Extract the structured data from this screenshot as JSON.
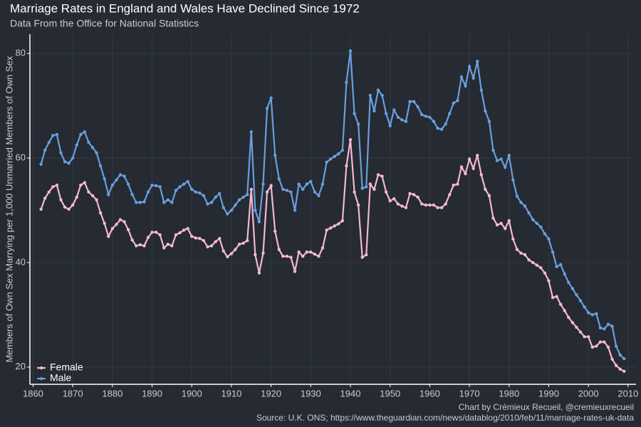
{
  "chart_data": {
    "type": "line",
    "title": "Marriage Rates in England and Wales Have Declined Since 1972",
    "subtitle": "Data From the Office for National Statistics",
    "y_label": "Members of Own Sex Marrying per 1,000 Unmarried Members of Own Sex",
    "caption": [
      "Chart by Crémieux Recueil, @cremieuxrecueil",
      "Source: U.K. ONS; https://www.theguardian.com/news/datablog/2010/feb/11/marriage-rates-uk-data"
    ],
    "x": [
      1862,
      1863,
      1864,
      1865,
      1866,
      1867,
      1868,
      1869,
      1870,
      1871,
      1872,
      1873,
      1874,
      1875,
      1876,
      1877,
      1878,
      1879,
      1880,
      1881,
      1882,
      1883,
      1884,
      1885,
      1886,
      1887,
      1888,
      1889,
      1890,
      1891,
      1892,
      1893,
      1894,
      1895,
      1896,
      1897,
      1898,
      1899,
      1900,
      1901,
      1902,
      1903,
      1904,
      1905,
      1906,
      1907,
      1908,
      1909,
      1910,
      1911,
      1912,
      1913,
      1914,
      1915,
      1916,
      1917,
      1918,
      1919,
      1920,
      1921,
      1922,
      1923,
      1924,
      1925,
      1926,
      1927,
      1928,
      1929,
      1930,
      1931,
      1932,
      1933,
      1934,
      1935,
      1936,
      1937,
      1938,
      1939,
      1940,
      1941,
      1942,
      1943,
      1944,
      1945,
      1946,
      1947,
      1948,
      1949,
      1950,
      1951,
      1952,
      1953,
      1954,
      1955,
      1956,
      1957,
      1958,
      1959,
      1960,
      1961,
      1962,
      1963,
      1964,
      1965,
      1966,
      1967,
      1968,
      1969,
      1970,
      1971,
      1972,
      1973,
      1974,
      1975,
      1976,
      1977,
      1978,
      1979,
      1980,
      1981,
      1982,
      1983,
      1984,
      1985,
      1986,
      1987,
      1988,
      1989,
      1990,
      1991,
      1992,
      1993,
      1994,
      1995,
      1996,
      1997,
      1998,
      1999,
      2000,
      2001,
      2002,
      2003,
      2004,
      2005,
      2006,
      2007,
      2008,
      2009
    ],
    "series": [
      {
        "name": "Female",
        "color": "#f4b8d4",
        "values": [
          50.2,
          52.3,
          53.5,
          54.5,
          54.8,
          52,
          50.6,
          50.2,
          51,
          52.5,
          54.8,
          55.3,
          53.5,
          52.8,
          52,
          49.5,
          47.5,
          45,
          46.5,
          47.3,
          48.2,
          47.8,
          46.3,
          44.3,
          43.2,
          43.4,
          43.2,
          44.8,
          45.8,
          45.8,
          45.3,
          42.8,
          43.5,
          43.2,
          45.3,
          45.7,
          46.2,
          46.5,
          45,
          44.7,
          44.6,
          44.2,
          43,
          43.2,
          44,
          44.6,
          42.2,
          41.1,
          41.7,
          42.5,
          43.5,
          43.7,
          44.2,
          54,
          41.5,
          38,
          41.8,
          53.5,
          54.7,
          46,
          42.5,
          41.2,
          41.2,
          41,
          38.3,
          42,
          41.2,
          42,
          42,
          41.6,
          41.2,
          42.8,
          46.2,
          46.6,
          47,
          47.4,
          48,
          58.5,
          63.5,
          53.5,
          51,
          41,
          41.5,
          55,
          54,
          56.8,
          56.5,
          53.5,
          51.8,
          52.2,
          51.2,
          50.8,
          50.5,
          53.2,
          53,
          52.5,
          51.2,
          51,
          51,
          51,
          50.5,
          50.5,
          51.2,
          53,
          54.8,
          55,
          58.3,
          57,
          59.8,
          58,
          60.5,
          56.8,
          54,
          52.8,
          48.5,
          47.2,
          47.5,
          46.5,
          48,
          44.5,
          42.5,
          41.8,
          41.5,
          40.5,
          40,
          39.5,
          39,
          38,
          36.5,
          33.3,
          33.5,
          32,
          30.8,
          29.5,
          28.5,
          27.6,
          26.7,
          25.8,
          25.8,
          23.8,
          24,
          24.8,
          24.8,
          23.8,
          21.5,
          20.3,
          19.6,
          19.2
        ]
      },
      {
        "name": "Male",
        "color": "#6a9fdc",
        "values": [
          58.8,
          61.5,
          63,
          64.3,
          64.5,
          61,
          59.3,
          59,
          60,
          62.5,
          64.5,
          65,
          63,
          62,
          61,
          58.5,
          56,
          53,
          54.8,
          55.8,
          56.8,
          56.5,
          55,
          53,
          51.5,
          51.5,
          51.6,
          53.5,
          54.8,
          54.7,
          54.5,
          51.5,
          52,
          51.5,
          53.8,
          54.5,
          55,
          55.5,
          54,
          53.5,
          53.3,
          52.8,
          51.2,
          51.5,
          52.5,
          53.2,
          50.5,
          49.3,
          50,
          51,
          52,
          52.5,
          53,
          65,
          50,
          47.8,
          55,
          69.5,
          71.5,
          60.5,
          56,
          54,
          53.8,
          53.5,
          50,
          55,
          54,
          55,
          55.5,
          53.5,
          52.8,
          55,
          59.2,
          59.8,
          60.3,
          60.8,
          61.5,
          74.5,
          80.5,
          68.5,
          66.5,
          54.2,
          54.5,
          72,
          69,
          73,
          72,
          68.5,
          66.2,
          69.2,
          67.8,
          67.3,
          67,
          70.8,
          70.8,
          69.8,
          68.3,
          68,
          67.8,
          67,
          65.7,
          65.5,
          66.5,
          68.5,
          70.5,
          71,
          75.5,
          73.8,
          77.5,
          75.3,
          78.5,
          73,
          69,
          67,
          61.5,
          59.5,
          59.8,
          58.2,
          60.5,
          55.8,
          52.7,
          51.5,
          50.8,
          49.5,
          48.2,
          47.5,
          46.8,
          45.5,
          44.5,
          42,
          39.2,
          39.6,
          37.8,
          36.2,
          35,
          33.8,
          32.7,
          31.5,
          30.4,
          30,
          30.2,
          27.5,
          27.3,
          28.2,
          27.8,
          24,
          22.3,
          21.6
        ]
      }
    ],
    "xlim": [
      1859.2,
      2012
    ],
    "xticks": [
      1860,
      1870,
      1880,
      1890,
      1900,
      1910,
      1920,
      1930,
      1940,
      1950,
      1960,
      1970,
      1980,
      1990,
      2000,
      2010
    ],
    "ylim": [
      16.7,
      83.7
    ],
    "yticks": [
      20,
      40,
      60,
      80
    ],
    "grid": true,
    "legend": "bottom-left"
  }
}
